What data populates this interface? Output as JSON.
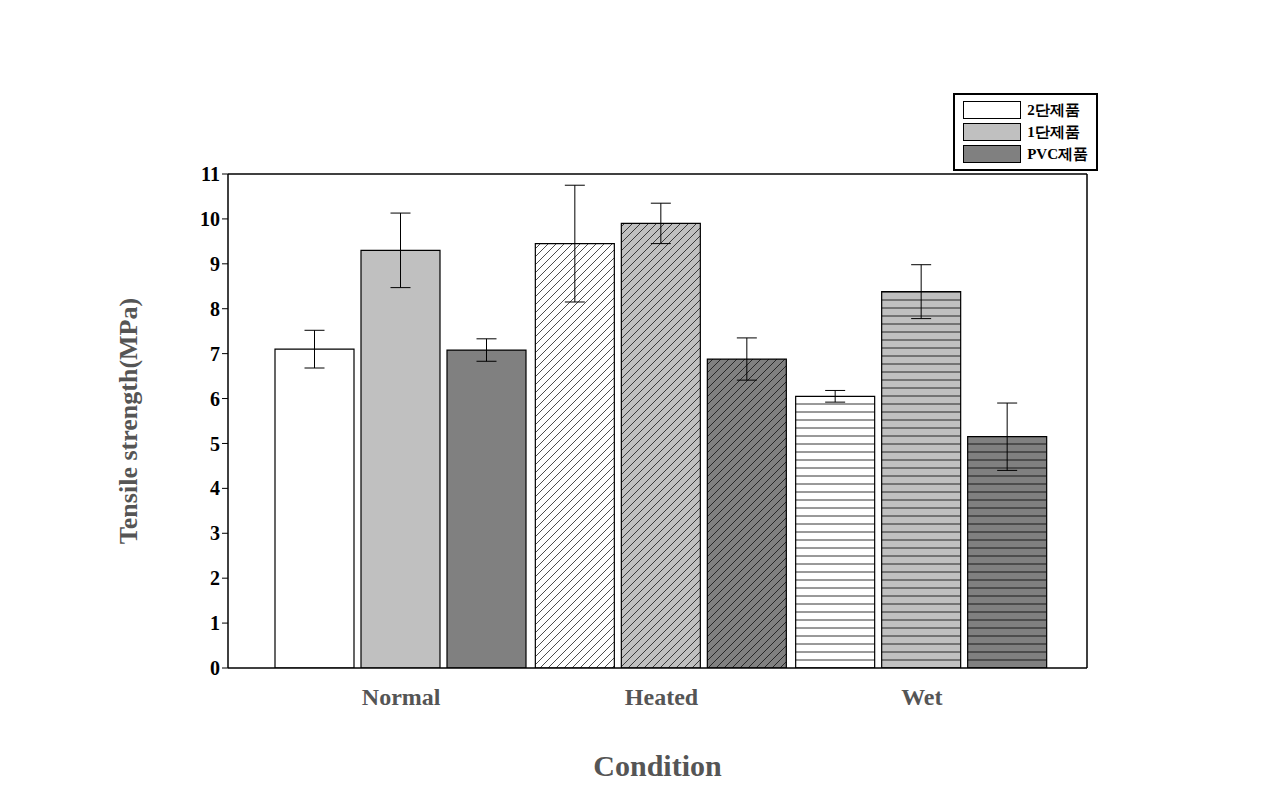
{
  "chart_data": {
    "type": "bar",
    "x_label": "Condition",
    "y_label": "Tensile strength(MPa)",
    "categories": [
      "Normal",
      "Heated",
      "Wet"
    ],
    "series": [
      {
        "name": "2단제품",
        "color": "#ffffff",
        "values": [
          7.1,
          9.45,
          6.05
        ],
        "errors": [
          0.42,
          1.3,
          0.13
        ]
      },
      {
        "name": "1단제품",
        "color": "#c0c0c0",
        "values": [
          9.3,
          9.9,
          8.38
        ],
        "errors": [
          0.83,
          0.45,
          0.6
        ]
      },
      {
        "name": "PVC제품",
        "color": "#808080",
        "values": [
          7.08,
          6.88,
          5.15
        ],
        "errors": [
          0.25,
          0.47,
          0.75
        ]
      }
    ],
    "ylim": [
      0,
      11
    ],
    "yticks": [
      0,
      1,
      2,
      3,
      4,
      5,
      6,
      7,
      8,
      9,
      10,
      11
    ],
    "grid": false,
    "legend": "top-right"
  }
}
